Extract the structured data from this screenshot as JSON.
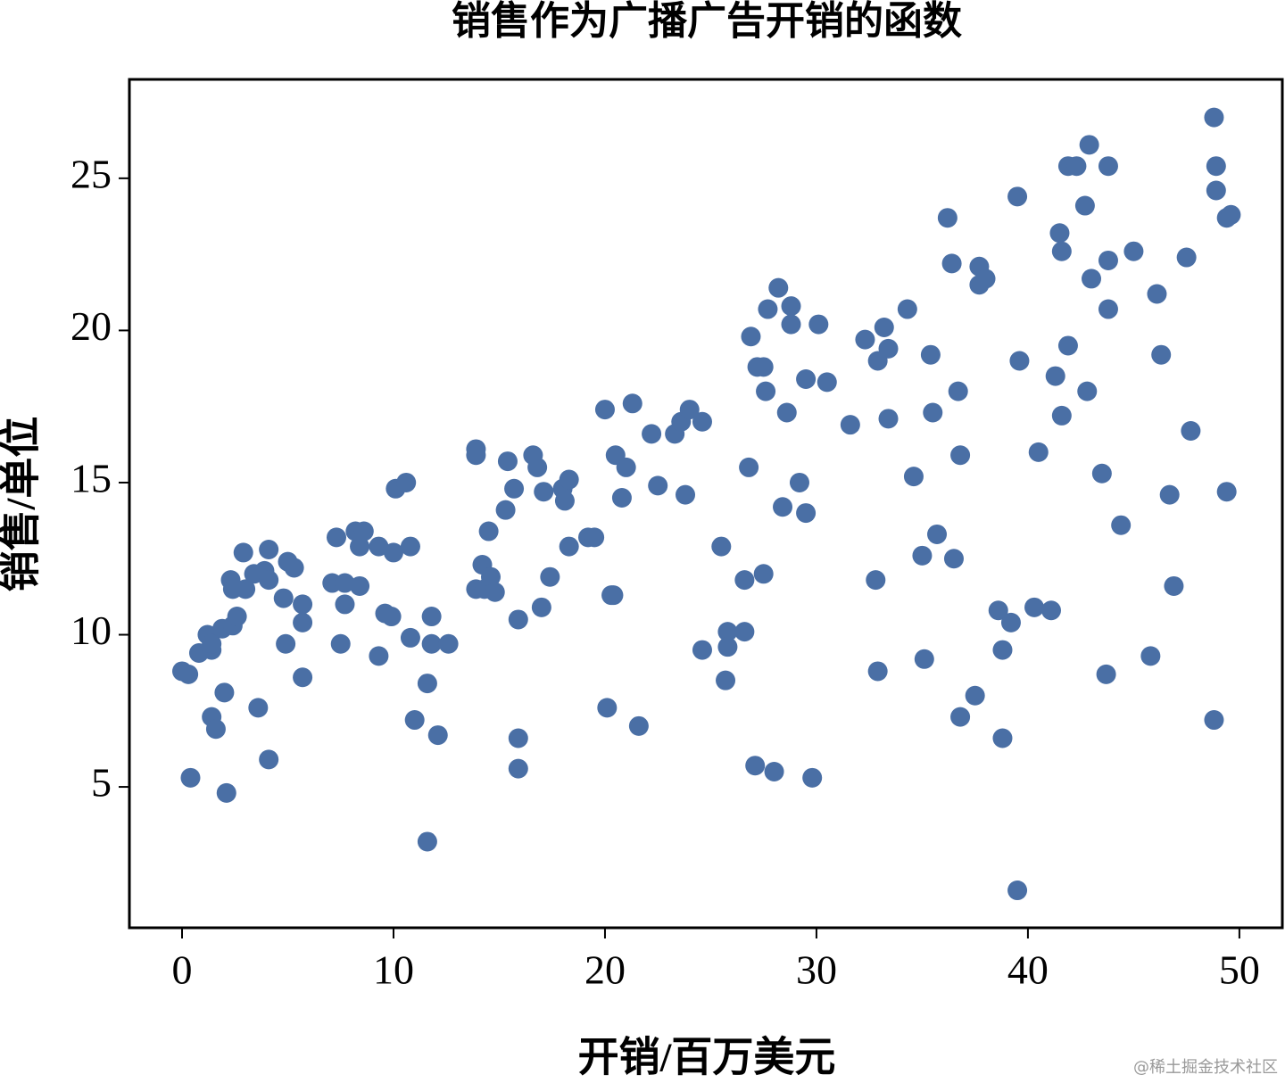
{
  "chart_data": {
    "type": "scatter",
    "title": "销售作为广播广告开销的函数",
    "x_label": "开销/百万美元",
    "y_label": "销售/单位",
    "watermark": "@稀土掘金技术社区",
    "color": "#4a6fa5",
    "xlim": [
      -2.49,
      52.03
    ],
    "ylim": [
      0.37,
      28.25
    ],
    "xticks": [
      0,
      10,
      20,
      30,
      40,
      50
    ],
    "yticks": [
      5,
      10,
      15,
      20,
      25
    ],
    "x": [
      0,
      0.3,
      0.4,
      0.8,
      1.4,
      1.2,
      1.4,
      1.4,
      1.6,
      1.9,
      2.0,
      2.1,
      2.3,
      2.4,
      2.6,
      2.9,
      2.4,
      3.0,
      3.4,
      3.6,
      3.9,
      4.1,
      4.1,
      4.1,
      4.8,
      4.9,
      5.0,
      5.3,
      5.7,
      5.7,
      5.7,
      7.1,
      7.3,
      7.5,
      7.7,
      7.7,
      8.2,
      8.4,
      8.4,
      8.6,
      9.3,
      9.3,
      9.6,
      9.9,
      10.0,
      10.1,
      10.6,
      10.8,
      10.8,
      11.0,
      11.6,
      11.6,
      11.8,
      11.8,
      12.1,
      12.6,
      13.9,
      13.9,
      13.9,
      14.2,
      14.3,
      14.5,
      14.6,
      14.8,
      15.3,
      15.4,
      15.7,
      15.9,
      15.9,
      15.9,
      16.6,
      16.8,
      17.0,
      17.1,
      17.4,
      18.0,
      18.1,
      18.3,
      18.3,
      19.2,
      19.5,
      20.0,
      20.1,
      20.3,
      20.5,
      20.4,
      20.8,
      21.0,
      21.3,
      21.6,
      22.2,
      22.5,
      23.3,
      23.6,
      23.8,
      24.0,
      24.6,
      24.6,
      25.5,
      25.7,
      25.8,
      25.8,
      26.6,
      26.6,
      26.8,
      26.9,
      27.1,
      27.2,
      27.5,
      27.5,
      27.6,
      27.7,
      28.0,
      28.2,
      28.4,
      28.6,
      28.8,
      28.8,
      29.2,
      29.5,
      29.5,
      29.8,
      30.1,
      30.5,
      31.6,
      32.3,
      32.8,
      32.9,
      32.9,
      33.2,
      33.4,
      33.4,
      34.3,
      34.6,
      35.0,
      35.1,
      35.4,
      35.5,
      35.7,
      36.2,
      36.4,
      36.5,
      36.7,
      36.8,
      36.8,
      37.5,
      37.7,
      37.7,
      38.0,
      38.6,
      38.8,
      38.8,
      39.2,
      39.5,
      39.5,
      39.6,
      40.3,
      40.5,
      41.1,
      41.3,
      41.5,
      41.6,
      41.6,
      41.9,
      41.9,
      42.3,
      42.7,
      42.8,
      42.9,
      43.0,
      43.5,
      43.7,
      43.8,
      43.8,
      43.8,
      44.4,
      45.0,
      45.8,
      46.1,
      46.3,
      46.7,
      46.9,
      47.5,
      47.7,
      48.8,
      48.8,
      48.9,
      48.9,
      49.4,
      49.4,
      49.6
    ],
    "values": [
      8.8,
      8.7,
      5.3,
      9.4,
      9.5,
      10.0,
      9.7,
      7.3,
      6.9,
      10.2,
      8.1,
      4.8,
      11.8,
      10.3,
      10.6,
      12.7,
      11.5,
      11.5,
      12.0,
      7.6,
      12.1,
      12.8,
      5.9,
      11.8,
      11.2,
      9.7,
      12.4,
      12.2,
      11.0,
      10.4,
      8.6,
      11.7,
      13.2,
      9.7,
      11.7,
      11.0,
      13.4,
      11.6,
      12.9,
      13.4,
      12.9,
      9.3,
      10.7,
      10.6,
      12.7,
      14.8,
      15.0,
      12.9,
      9.9,
      7.2,
      3.2,
      8.4,
      10.6,
      9.7,
      6.7,
      9.7,
      16.1,
      15.9,
      11.5,
      12.3,
      11.5,
      13.4,
      11.9,
      11.4,
      14.1,
      15.7,
      14.8,
      5.6,
      10.5,
      6.6,
      15.9,
      15.5,
      10.9,
      14.7,
      11.9,
      14.8,
      14.4,
      15.1,
      12.9,
      13.2,
      13.2,
      17.4,
      7.6,
      11.3,
      15.9,
      11.3,
      14.5,
      15.5,
      17.6,
      7.0,
      16.6,
      14.9,
      16.6,
      17.0,
      14.6,
      17.4,
      9.5,
      17.0,
      12.9,
      8.5,
      10.1,
      9.6,
      10.1,
      11.8,
      15.5,
      19.8,
      5.7,
      18.8,
      18.8,
      12.0,
      18.0,
      20.7,
      5.5,
      21.4,
      14.2,
      17.3,
      20.8,
      20.2,
      15.0,
      18.4,
      14.0,
      5.3,
      20.2,
      18.3,
      16.9,
      19.7,
      11.8,
      19.0,
      8.8,
      20.1,
      19.4,
      17.1,
      20.7,
      15.2,
      12.6,
      9.2,
      19.2,
      17.3,
      13.3,
      23.7,
      22.2,
      12.5,
      18.0,
      15.9,
      7.3,
      8.0,
      22.1,
      21.5,
      21.7,
      10.8,
      9.5,
      6.6,
      10.4,
      24.4,
      1.6,
      19.0,
      10.9,
      16.0,
      10.8,
      18.5,
      23.2,
      22.6,
      17.2,
      25.4,
      19.5,
      25.4,
      24.1,
      18.0,
      26.1,
      21.7,
      15.3,
      8.7,
      25.4,
      22.3,
      20.7,
      13.6,
      22.6,
      9.3,
      21.2,
      19.2,
      14.6,
      11.6,
      22.4,
      16.7,
      27.0,
      7.2,
      25.4,
      24.6,
      14.7,
      23.7,
      23.8
    ]
  }
}
